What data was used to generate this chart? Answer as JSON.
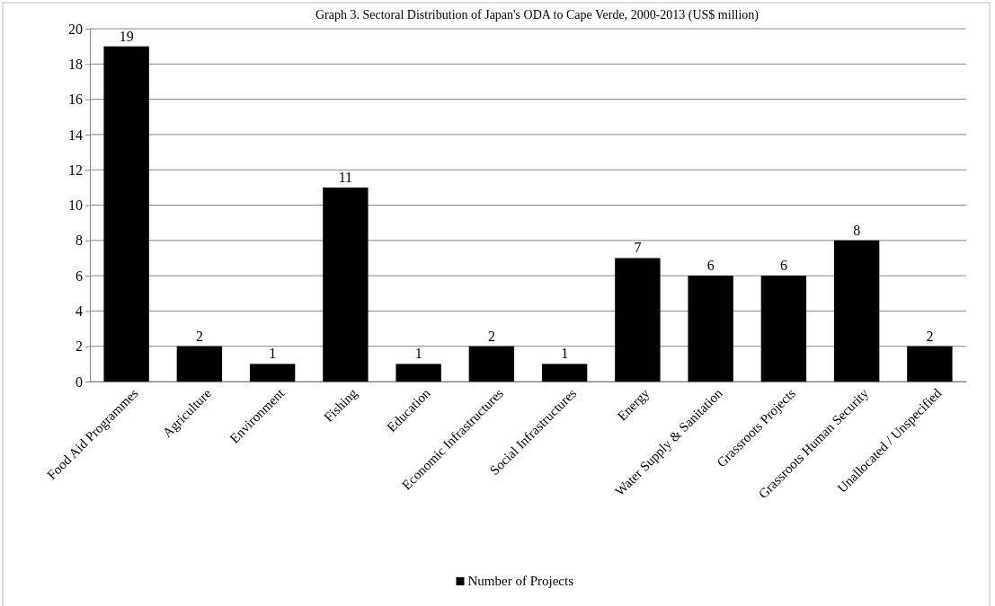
{
  "chart_data": {
    "type": "bar",
    "title": "Graph 3. Sectoral Distribution of Japan's ODA to Cape Verde, 2000-2013 (US$ million)",
    "categories": [
      "Food Aid Programmes",
      "Agriculture",
      "Environment",
      "Fishing",
      "Education",
      "Economic Infrastructures",
      "Social Infrastructures",
      "Energy",
      "Water Supply & Sanitation",
      "Grassroots Projects",
      "Grassroots Human Security",
      "Unallocated / Unspecified"
    ],
    "series": [
      {
        "name": "Number of Projects",
        "color": "#000000",
        "values": [
          19,
          2,
          1,
          11,
          1,
          2,
          1,
          7,
          6,
          6,
          8,
          2
        ]
      }
    ],
    "ylim": [
      0,
      20
    ],
    "yticks": [
      0,
      2,
      4,
      6,
      8,
      10,
      12,
      14,
      16,
      18,
      20
    ],
    "grid": "y",
    "legend": "bottom",
    "data_labels": true
  }
}
